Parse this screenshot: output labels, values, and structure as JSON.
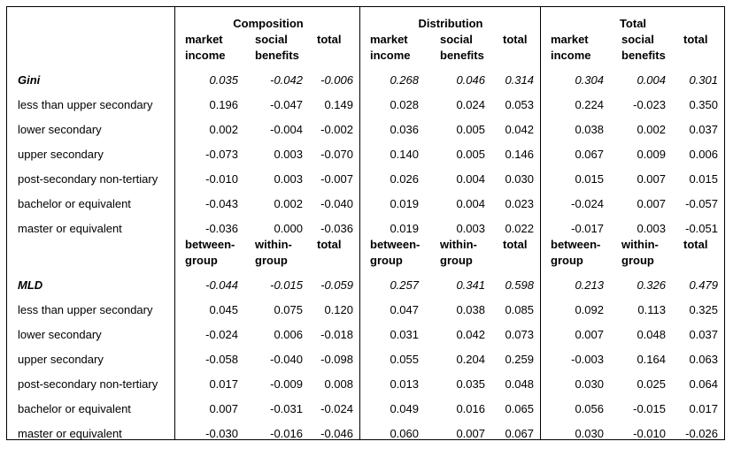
{
  "groups": [
    "Composition",
    "Distribution",
    "Total"
  ],
  "top_headers": {
    "line1": [
      "market",
      "social",
      "total"
    ],
    "line2": [
      "income",
      "benefits",
      ""
    ]
  },
  "mid_headers": {
    "line1": [
      "between-",
      "within-",
      "total"
    ],
    "line2": [
      "group",
      "group",
      ""
    ]
  },
  "gini": {
    "label": "Gini",
    "summary": [
      "0.035",
      "-0.042",
      "-0.006",
      "0.268",
      "0.046",
      "0.314",
      "0.304",
      "0.004",
      "0.301"
    ],
    "rows": [
      {
        "label": "less than upper secondary",
        "values": [
          "0.196",
          "-0.047",
          "0.149",
          "0.028",
          "0.024",
          "0.053",
          "0.224",
          "-0.023",
          "0.350"
        ]
      },
      {
        "label": "lower secondary",
        "values": [
          "0.002",
          "-0.004",
          "-0.002",
          "0.036",
          "0.005",
          "0.042",
          "0.038",
          "0.002",
          "0.037"
        ]
      },
      {
        "label": "upper secondary",
        "values": [
          "-0.073",
          "0.003",
          "-0.070",
          "0.140",
          "0.005",
          "0.146",
          "0.067",
          "0.009",
          "0.006"
        ]
      },
      {
        "label": "post-secondary non-tertiary",
        "values": [
          "-0.010",
          "0.003",
          "-0.007",
          "0.026",
          "0.004",
          "0.030",
          "0.015",
          "0.007",
          "0.015"
        ]
      },
      {
        "label": "bachelor or equivalent",
        "values": [
          "-0.043",
          "0.002",
          "-0.040",
          "0.019",
          "0.004",
          "0.023",
          "-0.024",
          "0.007",
          "-0.057"
        ]
      },
      {
        "label": "master or equivalent",
        "values": [
          "-0.036",
          "0.000",
          "-0.036",
          "0.019",
          "0.003",
          "0.022",
          "-0.017",
          "0.003",
          "-0.051"
        ]
      }
    ]
  },
  "mld": {
    "label": "MLD",
    "summary": [
      "-0.044",
      "-0.015",
      "-0.059",
      "0.257",
      "0.341",
      "0.598",
      "0.213",
      "0.326",
      "0.479"
    ],
    "rows": [
      {
        "label": "less than upper secondary",
        "values": [
          "0.045",
          "0.075",
          "0.120",
          "0.047",
          "0.038",
          "0.085",
          "0.092",
          "0.113",
          "0.325"
        ]
      },
      {
        "label": "lower secondary",
        "values": [
          "-0.024",
          "0.006",
          "-0.018",
          "0.031",
          "0.042",
          "0.073",
          "0.007",
          "0.048",
          "0.037"
        ]
      },
      {
        "label": "upper secondary",
        "values": [
          "-0.058",
          "-0.040",
          "-0.098",
          "0.055",
          "0.204",
          "0.259",
          "-0.003",
          "0.164",
          "0.063"
        ]
      },
      {
        "label": "post-secondary non-tertiary",
        "values": [
          "0.017",
          "-0.009",
          "0.008",
          "0.013",
          "0.035",
          "0.048",
          "0.030",
          "0.025",
          "0.064"
        ]
      },
      {
        "label": "bachelor or equivalent",
        "values": [
          "0.007",
          "-0.031",
          "-0.024",
          "0.049",
          "0.016",
          "0.065",
          "0.056",
          "-0.015",
          "0.017"
        ]
      },
      {
        "label": "master or equivalent",
        "values": [
          "-0.030",
          "-0.016",
          "-0.046",
          "0.060",
          "0.007",
          "0.067",
          "0.030",
          "-0.010",
          "-0.026"
        ]
      }
    ]
  }
}
